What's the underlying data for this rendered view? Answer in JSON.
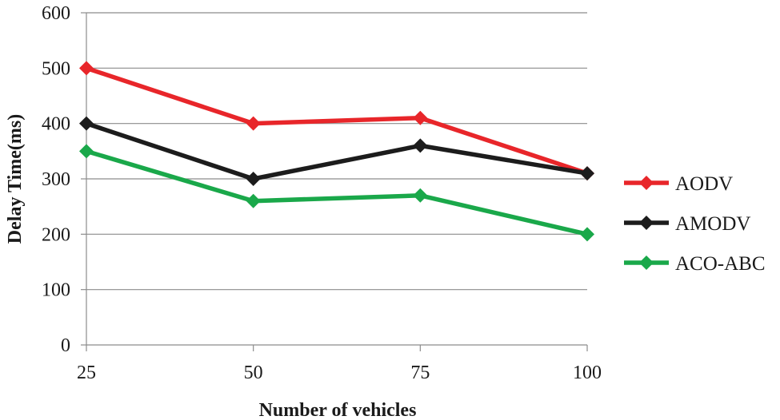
{
  "chart_data": {
    "type": "line",
    "title": "",
    "xlabel": "Number of vehicles",
    "ylabel": "Delay Time(ms)",
    "categories": [
      "25",
      "50",
      "75",
      "100"
    ],
    "ylim": [
      0,
      600
    ],
    "yticks": [
      0,
      100,
      200,
      300,
      400,
      500,
      600
    ],
    "grid": true,
    "legend_position": "right",
    "series": [
      {
        "name": "AODV",
        "color": "#e8262a",
        "values": [
          500,
          400,
          410,
          310
        ]
      },
      {
        "name": "AMODV",
        "color": "#1c1c1c",
        "values": [
          400,
          300,
          360,
          310
        ]
      },
      {
        "name": "ACO-ABC",
        "color": "#1aa84a",
        "values": [
          350,
          260,
          270,
          200
        ]
      }
    ]
  }
}
